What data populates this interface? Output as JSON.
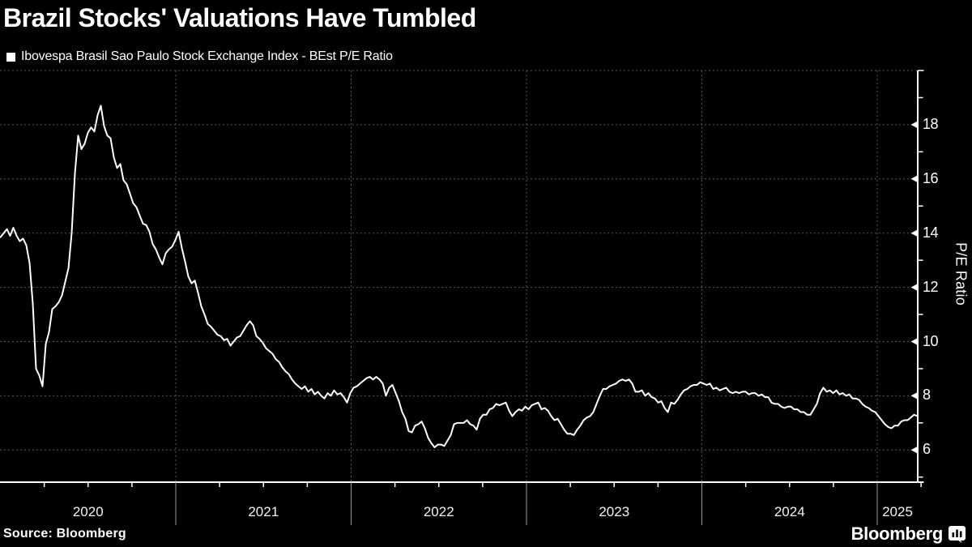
{
  "header": {
    "title": "Brazil Stocks' Valuations Have Tumbled",
    "legend_label": "Ibovespa Brasil Sao Paulo Stock Exchange Index - BEst P/E Ratio",
    "legend_marker": "■"
  },
  "footer": {
    "source": "Source: Bloomberg",
    "brand": "Bloomberg"
  },
  "chart_data": {
    "type": "line",
    "title": "Brazil Stocks' Valuations Have Tumbled",
    "series_name": "Ibovespa Brasil Sao Paulo Stock Exchange Index - BEst P/E Ratio",
    "xlabel": "",
    "ylabel": "P/E Ratio",
    "x_unit": "decimal_year",
    "x_start": 2020.0,
    "x_step_years": 0.018476,
    "xlim": [
      2020.0,
      2025.235
    ],
    "ylim": [
      4.8,
      20
    ],
    "y_ticks": [
      6,
      8,
      10,
      12,
      14,
      16,
      18
    ],
    "y_minor_ticks": [
      5,
      7,
      9,
      11,
      13,
      15,
      17,
      19
    ],
    "x_years": [
      2020,
      2021,
      2022,
      2023,
      2024,
      2025
    ],
    "grid": true,
    "legend_position": "top-left",
    "colors": {
      "background": "#000000",
      "line": "#ffffff",
      "grid": "#575757",
      "axis": "#ffffff",
      "year_separator": "#9a9a9a",
      "text": "#ffffff"
    },
    "values": [
      13.85,
      14.0,
      14.15,
      13.9,
      14.2,
      13.9,
      13.7,
      13.8,
      13.55,
      12.9,
      11.4,
      9.0,
      8.75,
      8.35,
      9.9,
      10.35,
      11.2,
      11.3,
      11.45,
      11.7,
      12.2,
      12.7,
      14.0,
      16.2,
      17.6,
      17.1,
      17.3,
      17.7,
      17.9,
      17.75,
      18.35,
      18.7,
      17.95,
      17.6,
      17.5,
      16.8,
      16.4,
      16.55,
      15.95,
      15.8,
      15.45,
      15.1,
      14.95,
      14.65,
      14.35,
      14.3,
      14.05,
      13.6,
      13.4,
      13.1,
      12.85,
      13.25,
      13.4,
      13.5,
      13.75,
      14.05,
      13.45,
      12.95,
      12.4,
      12.15,
      12.25,
      11.8,
      11.3,
      11.0,
      10.65,
      10.55,
      10.4,
      10.25,
      10.2,
      10.05,
      10.1,
      9.85,
      10.0,
      10.15,
      10.2,
      10.4,
      10.6,
      10.75,
      10.6,
      10.2,
      10.1,
      9.95,
      9.75,
      9.65,
      9.55,
      9.35,
      9.25,
      9.05,
      8.9,
      8.8,
      8.6,
      8.45,
      8.35,
      8.25,
      8.35,
      8.15,
      8.25,
      8.05,
      8.15,
      8.0,
      7.9,
      8.1,
      8.0,
      8.2,
      8.05,
      8.1,
      7.95,
      7.75,
      8.1,
      8.3,
      8.35,
      8.45,
      8.55,
      8.65,
      8.7,
      8.6,
      8.7,
      8.6,
      8.45,
      8.0,
      8.3,
      8.4,
      8.1,
      7.8,
      7.4,
      7.15,
      6.7,
      6.65,
      6.9,
      6.95,
      7.05,
      6.8,
      6.45,
      6.25,
      6.1,
      6.2,
      6.2,
      6.15,
      6.35,
      6.55,
      6.95,
      7.0,
      7.0,
      7.0,
      7.1,
      6.95,
      6.9,
      6.75,
      7.15,
      7.3,
      7.3,
      7.5,
      7.55,
      7.7,
      7.65,
      7.7,
      7.75,
      7.45,
      7.25,
      7.4,
      7.5,
      7.45,
      7.6,
      7.5,
      7.65,
      7.7,
      7.75,
      7.5,
      7.55,
      7.45,
      7.25,
      7.1,
      7.15,
      6.95,
      6.75,
      6.6,
      6.6,
      6.55,
      6.75,
      6.9,
      7.1,
      7.2,
      7.25,
      7.4,
      7.7,
      8.0,
      8.25,
      8.25,
      8.35,
      8.4,
      8.45,
      8.55,
      8.6,
      8.55,
      8.6,
      8.45,
      8.15,
      8.15,
      8.2,
      8.0,
      8.1,
      7.95,
      7.9,
      7.75,
      7.8,
      7.55,
      7.4,
      7.75,
      7.7,
      7.85,
      8.05,
      8.2,
      8.25,
      8.35,
      8.4,
      8.4,
      8.5,
      8.45,
      8.4,
      8.45,
      8.25,
      8.3,
      8.2,
      8.25,
      8.3,
      8.15,
      8.1,
      8.15,
      8.1,
      8.15,
      8.15,
      8.05,
      8.1,
      8.1,
      8.0,
      8.05,
      7.95,
      7.95,
      7.75,
      7.7,
      7.7,
      7.6,
      7.55,
      7.6,
      7.6,
      7.5,
      7.5,
      7.4,
      7.4,
      7.3,
      7.3,
      7.5,
      7.7,
      8.1,
      8.3,
      8.15,
      8.2,
      8.1,
      8.2,
      8.05,
      8.1,
      8.0,
      8.05,
      7.9,
      7.9,
      7.85,
      7.7,
      7.6,
      7.55,
      7.45,
      7.4,
      7.25,
      7.1,
      6.95,
      6.85,
      6.8,
      6.9,
      6.9,
      7.05,
      7.1,
      7.1,
      7.2,
      7.3,
      7.25
    ]
  }
}
